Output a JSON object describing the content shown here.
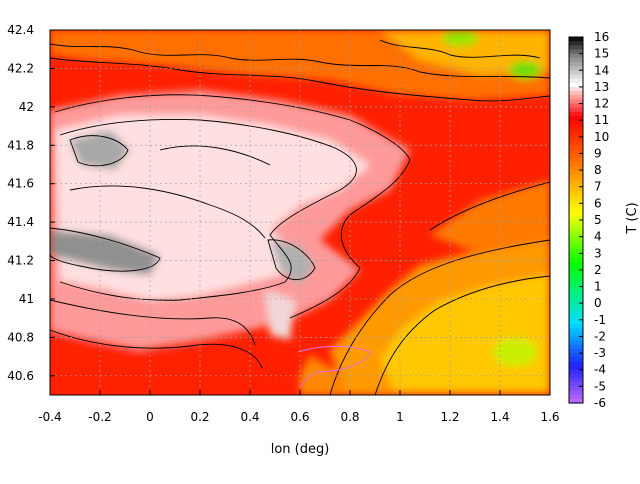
{
  "chart_data": {
    "type": "heatmap",
    "title": "",
    "xlabel": "lon (deg)",
    "ylabel": "",
    "colorbar_label": "T (C)",
    "xlim": [
      -0.4,
      1.6
    ],
    "ylim": [
      40.5,
      42.4
    ],
    "x_ticks": [
      "-0.4",
      "-0.2",
      "0",
      "0.2",
      "0.4",
      "0.6",
      "0.8",
      "1",
      "1.2",
      "1.4",
      "1.6"
    ],
    "y_ticks": [
      "40.6",
      "40.8",
      "41",
      "41.2",
      "41.4",
      "41.6",
      "41.8",
      "42",
      "42.2",
      "42.4"
    ],
    "colorbar_ticks": [
      "16",
      "15",
      "14",
      "13",
      "12",
      "11",
      "10",
      "9",
      "8",
      "7",
      "6",
      "5",
      "4",
      "3",
      "2",
      "1",
      "0",
      "-1",
      "-2",
      "-3",
      "-4",
      "-5",
      "-6"
    ],
    "color_range": [
      -6,
      16
    ],
    "grid": true,
    "contours": true,
    "colors": {
      "cold": "#c080ff",
      "mid": "#00ff00",
      "warm": "#ff0000",
      "hot": "#000000",
      "grid": "#a0a0a0"
    }
  }
}
